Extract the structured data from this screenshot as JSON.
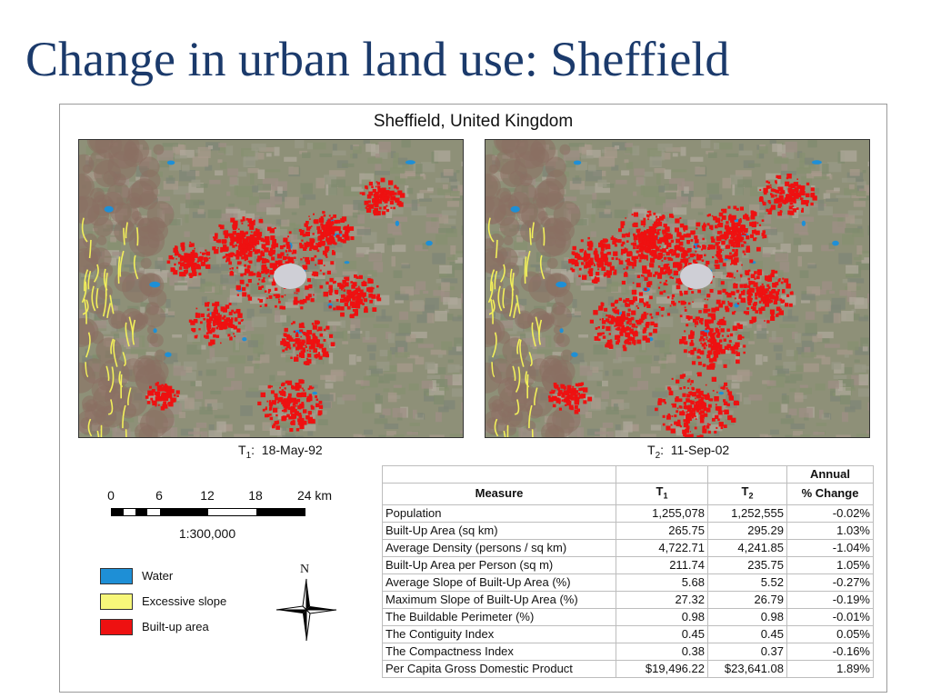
{
  "slide": {
    "title": "Change in urban land use: Sheffield"
  },
  "figure": {
    "title": "Sheffield, United Kingdom",
    "maps": [
      {
        "label_prefix": "T",
        "label_sub": "1",
        "date": "18-May-92"
      },
      {
        "label_prefix": "T",
        "label_sub": "2",
        "date": "11-Sep-02"
      }
    ],
    "scale": {
      "ticks": [
        "0",
        "6",
        "12",
        "18",
        "24 km"
      ],
      "ratio": "1:300,000"
    },
    "legend": [
      {
        "label": "Water",
        "color": "#1e8fd6"
      },
      {
        "label": "Excessive slope",
        "color": "#f7f77a"
      },
      {
        "label": "Built-up area",
        "color": "#ee1111"
      }
    ],
    "north_label": "N",
    "table": {
      "header": {
        "annual": "Annual",
        "measure": "Measure",
        "t": "T",
        "t1_sub": "1",
        "t2_sub": "2",
        "change": "% Change"
      },
      "rows": [
        {
          "measure": "Population",
          "t1": "1,255,078",
          "t2": "1,252,555",
          "change": "-0.02%"
        },
        {
          "measure": "Built-Up Area (sq km)",
          "t1": "265.75",
          "t2": "295.29",
          "change": "1.03%"
        },
        {
          "measure": "Average Density (persons / sq km)",
          "t1": "4,722.71",
          "t2": "4,241.85",
          "change": "-1.04%"
        },
        {
          "measure": "Built-Up Area per Person (sq m)",
          "t1": "211.74",
          "t2": "235.75",
          "change": "1.05%"
        },
        {
          "measure": "Average Slope of Built-Up Area (%)",
          "t1": "5.68",
          "t2": "5.52",
          "change": "-0.27%"
        },
        {
          "measure": "Maximum Slope of Built-Up Area (%)",
          "t1": "27.32",
          "t2": "26.79",
          "change": "-0.19%"
        },
        {
          "measure": "The Buildable Perimeter (%)",
          "t1": "0.98",
          "t2": "0.98",
          "change": "-0.01%"
        },
        {
          "measure": "The Contiguity Index",
          "t1": "0.45",
          "t2": "0.45",
          "change": "0.05%"
        },
        {
          "measure": "The Compactness Index",
          "t1": "0.38",
          "t2": "0.37",
          "change": "-0.16%"
        },
        {
          "measure": "Per Capita Gross Domestic Product",
          "t1": "$19,496.22",
          "t2": "$23,641.08",
          "change": "1.89%"
        }
      ]
    }
  }
}
